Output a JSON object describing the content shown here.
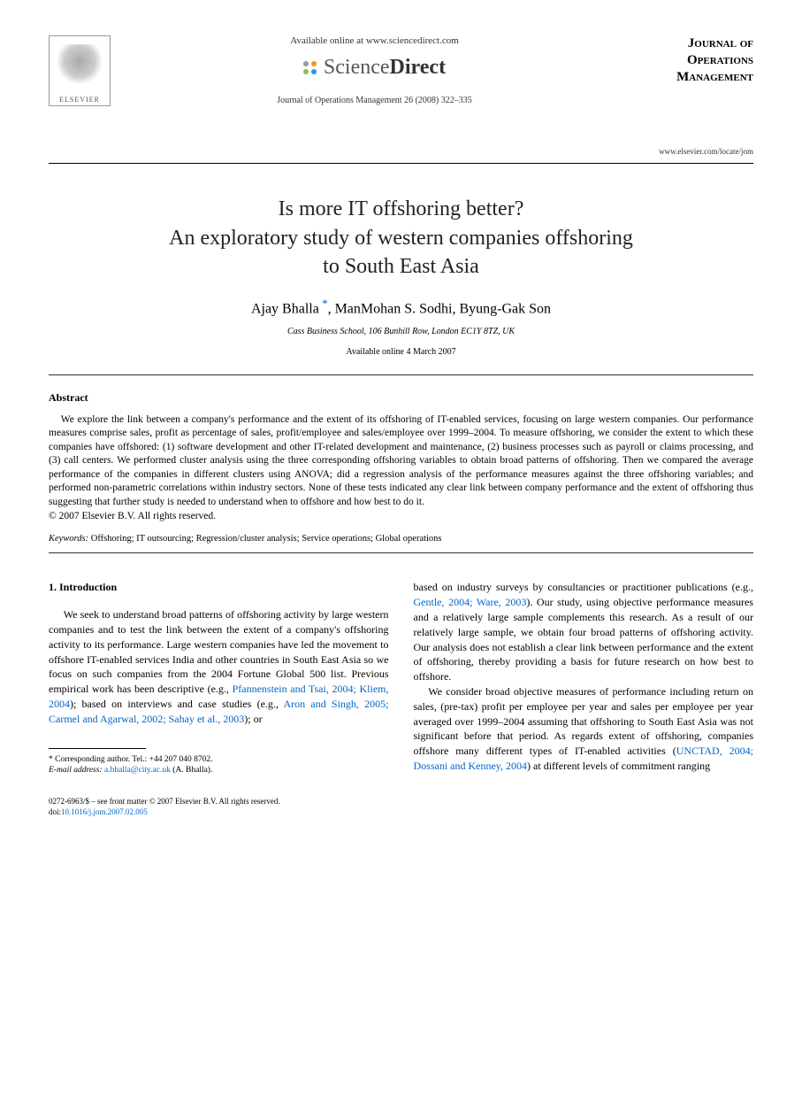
{
  "header": {
    "publisher_name": "ELSEVIER",
    "available_text": "Available online at www.sciencedirect.com",
    "sd_brand_left": "Science",
    "sd_brand_right": "Direct",
    "citation": "Journal of Operations Management 26 (2008) 322–335",
    "journal_line1": "Journal of",
    "journal_line2": "Operations",
    "journal_line3": "Management",
    "journal_url": "www.elsevier.com/locate/jom"
  },
  "title": {
    "line1": "Is more IT offshoring better?",
    "line2": "An exploratory study of western companies offshoring",
    "line3": "to South East Asia"
  },
  "authors": "Ajay Bhalla *, ManMohan S. Sodhi, Byung-Gak Son",
  "affiliation": "Cass Business School, 106 Bunhill Row, London EC1Y 8TZ, UK",
  "available_date": "Available online 4 March 2007",
  "abstract": {
    "heading": "Abstract",
    "text": "We explore the link between a company's performance and the extent of its offshoring of IT-enabled services, focusing on large western companies. Our performance measures comprise sales, profit as percentage of sales, profit/employee and sales/employee over 1999–2004. To measure offshoring, we consider the extent to which these companies have offshored: (1) software development and other IT-related development and maintenance, (2) business processes such as payroll or claims processing, and (3) call centers. We performed cluster analysis using the three corresponding offshoring variables to obtain broad patterns of offshoring. Then we compared the average performance of the companies in different clusters using ANOVA; did a regression analysis of the performance measures against the three offshoring variables; and performed non-parametric correlations within industry sectors. None of these tests indicated any clear link between company performance and the extent of offshoring thus suggesting that further study is needed to understand when to offshore and how best to do it.",
    "copyright": "© 2007 Elsevier B.V. All rights reserved."
  },
  "keywords": {
    "label": "Keywords:",
    "text": " Offshoring; IT outsourcing; Regression/cluster analysis; Service operations; Global operations"
  },
  "section1": {
    "heading": "1. Introduction",
    "col1_para1_a": "We seek to understand broad patterns of offshoring activity by large western companies and to test the link between the extent of a company's offshoring activity to its performance. Large western companies have led the movement to offshore IT-enabled services India and other countries in South East Asia so we focus on such companies from the 2004 Fortune Global 500 list. Previous empirical work has been descriptive (e.g., ",
    "ref1": "Pfannenstein and Tsai, 2004; Kliem, 2004",
    "col1_para1_b": "); based on interviews and case studies (e.g., ",
    "ref2": "Aron and Singh, 2005; Carmel and Agarwal, 2002; Sahay et al., 2003",
    "col1_para1_c": "); or",
    "col2_para1_a": "based on industry surveys by consultancies or practitioner publications (e.g., ",
    "ref3": "Gentle, 2004; Ware, 2003",
    "col2_para1_b": "). Our study, using objective performance measures and a relatively large sample complements this research. As a result of our relatively large sample, we obtain four broad patterns of offshoring activity. Our analysis does not establish a clear link between performance and the extent of offshoring, thereby providing a basis for future research on how best to offshore.",
    "col2_para2_a": "We consider broad objective measures of performance including return on sales, (pre-tax) profit per employee per year and sales per employee per year averaged over 1999–2004 assuming that offshoring to South East Asia was not significant before that period. As regards extent of offshoring, companies offshore many different types of IT-enabled activities (",
    "ref4": "UNCTAD, 2004; Dossani and Kenney, 2004",
    "col2_para2_b": ") at different levels of commitment ranging"
  },
  "footnote": {
    "corr": "* Corresponding author. Tel.: +44 207 040 8702.",
    "email_label": "E-mail address:",
    "email": " a.bhalla@city.ac.uk",
    "email_suffix": " (A. Bhalla)."
  },
  "footer": {
    "line1": "0272-6963/$ – see front matter © 2007 Elsevier B.V. All rights reserved.",
    "doi_label": "doi:",
    "doi": "10.1016/j.jom.2007.02.005"
  },
  "colors": {
    "link": "#0066cc",
    "text": "#000000",
    "bg": "#ffffff"
  }
}
